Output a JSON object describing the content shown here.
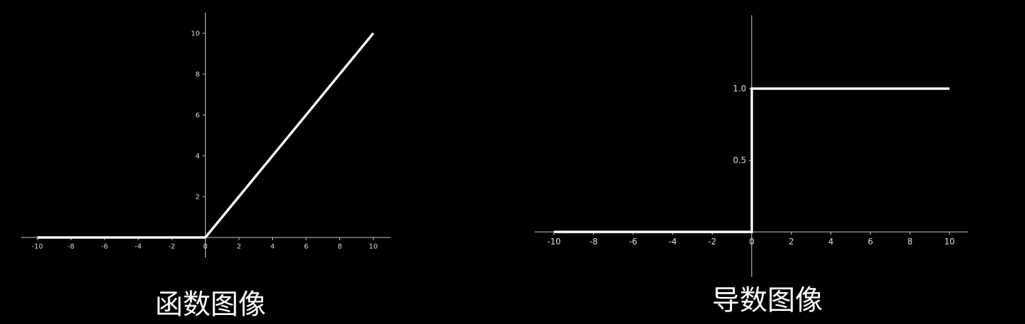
{
  "chart_data": [
    {
      "type": "line",
      "title": "",
      "caption": "函数图像",
      "xlabel": "",
      "ylabel": "",
      "xlim": [
        -10,
        10
      ],
      "ylim": [
        0,
        10
      ],
      "grid": false,
      "x_ticks": [
        "-10",
        "-8",
        "-6",
        "-4",
        "-2",
        "0",
        "2",
        "4",
        "6",
        "8",
        "10"
      ],
      "y_ticks": [
        "2",
        "4",
        "6",
        "8",
        "10"
      ],
      "line_color": "#ffffff",
      "series": [
        {
          "x": [
            -10,
            0,
            10
          ],
          "y": [
            0,
            0,
            10
          ]
        }
      ]
    },
    {
      "type": "line",
      "title": "",
      "caption": "导数图像",
      "xlabel": "",
      "ylabel": "",
      "xlim": [
        -10,
        10
      ],
      "ylim": [
        0,
        1
      ],
      "grid": false,
      "x_ticks": [
        "-10",
        "-8",
        "-6",
        "-4",
        "-2",
        "0",
        "2",
        "4",
        "6",
        "8",
        "10"
      ],
      "y_ticks": [
        "0.5",
        "1.0"
      ],
      "line_color": "#ffffff",
      "series": [
        {
          "x": [
            -10,
            0,
            0,
            10
          ],
          "y": [
            0,
            0,
            1,
            1
          ]
        }
      ]
    }
  ]
}
